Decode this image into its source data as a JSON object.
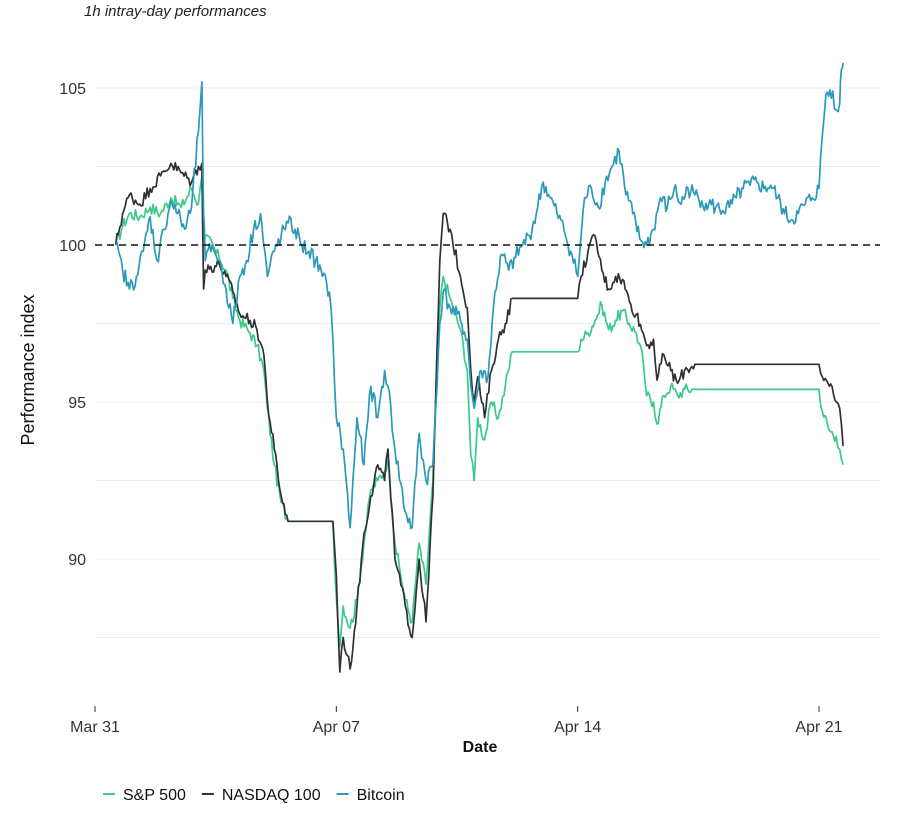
{
  "chart_data": {
    "type": "line",
    "subtitle": "1h intray-day performances",
    "xlabel": "Date",
    "ylabel": "Performance index",
    "x_ticks": [
      "Mar 31",
      "Apr 07",
      "Apr 14",
      "Apr 21"
    ],
    "x_range_days": [
      0,
      22.2
    ],
    "y_ticks": [
      90,
      95,
      100,
      105
    ],
    "ylim": [
      85.4,
      105.9
    ],
    "reference_line": 100,
    "grid": true,
    "legend_position": "bottom-left",
    "series": [
      {
        "name": "S&P 500",
        "color": "#3cc98a",
        "points": [
          [
            0.6,
            100
          ],
          [
            0.8,
            100.6
          ],
          [
            1.0,
            101.0
          ],
          [
            1.3,
            100.9
          ],
          [
            1.6,
            101.2
          ],
          [
            1.9,
            101.0
          ],
          [
            2.2,
            101.5
          ],
          [
            2.5,
            101.2
          ],
          [
            2.8,
            101.8
          ],
          [
            3.0,
            101.3
          ],
          [
            3.1,
            102.2
          ],
          [
            3.15,
            100.2
          ],
          [
            3.2,
            100.3
          ],
          [
            3.6,
            99.6
          ],
          [
            3.8,
            99.2
          ],
          [
            4.0,
            98.3
          ],
          [
            4.2,
            97.6
          ],
          [
            4.5,
            97.2
          ],
          [
            4.7,
            96.8
          ],
          [
            4.9,
            96.0
          ],
          [
            5.0,
            94.8
          ],
          [
            5.2,
            93.0
          ],
          [
            5.4,
            91.8
          ],
          [
            5.6,
            91.2
          ],
          [
            6.9,
            91.2
          ],
          [
            7.0,
            88.8
          ],
          [
            7.1,
            87.2
          ],
          [
            7.2,
            88.5
          ],
          [
            7.4,
            87.8
          ],
          [
            7.6,
            88.7
          ],
          [
            7.8,
            90.5
          ],
          [
            8.0,
            92.2
          ],
          [
            8.2,
            92.5
          ],
          [
            8.4,
            92.8
          ],
          [
            8.5,
            93.2
          ],
          [
            8.7,
            90.5
          ],
          [
            9.0,
            88.7
          ],
          [
            9.2,
            88.0
          ],
          [
            9.4,
            90.5
          ],
          [
            9.6,
            89.2
          ],
          [
            9.8,
            92.5
          ],
          [
            10.0,
            98.0
          ],
          [
            10.1,
            99.0
          ],
          [
            10.3,
            98.3
          ],
          [
            10.6,
            97.3
          ],
          [
            10.8,
            96.0
          ],
          [
            10.9,
            93.3
          ],
          [
            11.0,
            92.5
          ],
          [
            11.1,
            94.5
          ],
          [
            11.3,
            93.8
          ],
          [
            11.5,
            95.0
          ],
          [
            11.7,
            94.5
          ],
          [
            11.9,
            95.5
          ],
          [
            12.1,
            96.6
          ],
          [
            14.0,
            96.6
          ],
          [
            14.1,
            97.0
          ],
          [
            14.3,
            97.2
          ],
          [
            14.5,
            97.6
          ],
          [
            14.7,
            98.1
          ],
          [
            14.9,
            97.3
          ],
          [
            15.1,
            97.6
          ],
          [
            15.3,
            97.9
          ],
          [
            15.5,
            97.5
          ],
          [
            15.7,
            97.2
          ],
          [
            15.9,
            96.3
          ],
          [
            16.0,
            95.2
          ],
          [
            16.2,
            95.0
          ],
          [
            16.3,
            94.3
          ],
          [
            16.5,
            95.2
          ],
          [
            16.7,
            95.5
          ],
          [
            16.9,
            95.2
          ],
          [
            17.1,
            95.4
          ],
          [
            17.4,
            95.4
          ],
          [
            21.0,
            95.4
          ],
          [
            21.1,
            94.7
          ],
          [
            21.3,
            94.1
          ],
          [
            21.5,
            93.9
          ],
          [
            21.6,
            93.5
          ],
          [
            21.7,
            93.0
          ]
        ]
      },
      {
        "name": "NASDAQ 100",
        "color": "#2f3136",
        "points": [
          [
            0.6,
            100
          ],
          [
            0.8,
            101.0
          ],
          [
            1.0,
            101.6
          ],
          [
            1.3,
            101.3
          ],
          [
            1.6,
            101.8
          ],
          [
            1.9,
            102.2
          ],
          [
            2.2,
            102.6
          ],
          [
            2.5,
            102.3
          ],
          [
            2.8,
            102.0
          ],
          [
            3.0,
            102.5
          ],
          [
            3.1,
            102.6
          ],
          [
            3.15,
            98.6
          ],
          [
            3.2,
            99.2
          ],
          [
            3.6,
            99.4
          ],
          [
            3.8,
            99.0
          ],
          [
            4.0,
            98.5
          ],
          [
            4.2,
            97.8
          ],
          [
            4.5,
            97.6
          ],
          [
            4.7,
            97.3
          ],
          [
            4.9,
            96.5
          ],
          [
            5.0,
            95.0
          ],
          [
            5.2,
            93.5
          ],
          [
            5.4,
            92.0
          ],
          [
            5.6,
            91.2
          ],
          [
            6.9,
            91.2
          ],
          [
            7.0,
            89.5
          ],
          [
            7.1,
            86.4
          ],
          [
            7.2,
            87.5
          ],
          [
            7.4,
            86.5
          ],
          [
            7.6,
            88.5
          ],
          [
            7.8,
            90.8
          ],
          [
            8.0,
            92.0
          ],
          [
            8.2,
            93.0
          ],
          [
            8.4,
            92.5
          ],
          [
            8.5,
            93.5
          ],
          [
            8.7,
            90.0
          ],
          [
            9.0,
            88.5
          ],
          [
            9.2,
            87.5
          ],
          [
            9.4,
            90.0
          ],
          [
            9.6,
            88.0
          ],
          [
            9.8,
            92.0
          ],
          [
            10.0,
            99.5
          ],
          [
            10.1,
            101.0
          ],
          [
            10.3,
            100.5
          ],
          [
            10.6,
            99.0
          ],
          [
            10.8,
            98.0
          ],
          [
            10.9,
            96.0
          ],
          [
            11.0,
            95.0
          ],
          [
            11.1,
            95.8
          ],
          [
            11.3,
            94.5
          ],
          [
            11.5,
            96.0
          ],
          [
            11.7,
            97.0
          ],
          [
            11.9,
            97.5
          ],
          [
            12.1,
            98.3
          ],
          [
            14.0,
            98.3
          ],
          [
            14.1,
            99.0
          ],
          [
            14.3,
            99.8
          ],
          [
            14.5,
            100.3
          ],
          [
            14.7,
            99.2
          ],
          [
            14.9,
            98.6
          ],
          [
            15.1,
            99.0
          ],
          [
            15.3,
            98.9
          ],
          [
            15.5,
            98.2
          ],
          [
            15.7,
            97.8
          ],
          [
            15.9,
            97.2
          ],
          [
            16.0,
            96.8
          ],
          [
            16.2,
            97.0
          ],
          [
            16.3,
            95.7
          ],
          [
            16.5,
            96.5
          ],
          [
            16.7,
            96.0
          ],
          [
            16.9,
            95.6
          ],
          [
            17.1,
            96.0
          ],
          [
            17.4,
            96.2
          ],
          [
            21.0,
            96.2
          ],
          [
            21.1,
            95.8
          ],
          [
            21.3,
            95.5
          ],
          [
            21.5,
            95.0
          ],
          [
            21.6,
            94.8
          ],
          [
            21.7,
            93.6
          ]
        ]
      },
      {
        "name": "Bitcoin",
        "color": "#2a9ab8",
        "points": [
          [
            0.6,
            100
          ],
          [
            0.8,
            99.2
          ],
          [
            1.0,
            98.6
          ],
          [
            1.2,
            99.0
          ],
          [
            1.4,
            99.8
          ],
          [
            1.6,
            100.9
          ],
          [
            1.8,
            99.5
          ],
          [
            2.0,
            100.5
          ],
          [
            2.2,
            101.4
          ],
          [
            2.4,
            101.0
          ],
          [
            2.6,
            100.5
          ],
          [
            2.8,
            101.2
          ],
          [
            3.0,
            103.6
          ],
          [
            3.1,
            105.2
          ],
          [
            3.15,
            101.0
          ],
          [
            3.2,
            99.5
          ],
          [
            3.4,
            100.0
          ],
          [
            3.6,
            99.5
          ],
          [
            3.8,
            98.6
          ],
          [
            4.0,
            97.5
          ],
          [
            4.2,
            99.0
          ],
          [
            4.4,
            99.5
          ],
          [
            4.6,
            100.5
          ],
          [
            4.8,
            101.0
          ],
          [
            5.0,
            99.0
          ],
          [
            5.2,
            99.8
          ],
          [
            5.4,
            100.3
          ],
          [
            5.6,
            100.7
          ],
          [
            5.8,
            100.5
          ],
          [
            6.0,
            100.0
          ],
          [
            6.2,
            99.8
          ],
          [
            6.4,
            99.5
          ],
          [
            6.6,
            99.0
          ],
          [
            6.8,
            98.5
          ],
          [
            6.9,
            97.0
          ],
          [
            7.0,
            94.5
          ],
          [
            7.2,
            93.5
          ],
          [
            7.4,
            91.0
          ],
          [
            7.6,
            94.5
          ],
          [
            7.8,
            93.0
          ],
          [
            8.0,
            95.5
          ],
          [
            8.2,
            94.5
          ],
          [
            8.4,
            96.0
          ],
          [
            8.5,
            95.5
          ],
          [
            8.7,
            93.5
          ],
          [
            9.0,
            91.5
          ],
          [
            9.2,
            91.0
          ],
          [
            9.4,
            94.0
          ],
          [
            9.6,
            92.5
          ],
          [
            9.8,
            93.0
          ],
          [
            10.0,
            97.5
          ],
          [
            10.1,
            98.5
          ],
          [
            10.3,
            98.0
          ],
          [
            10.6,
            97.6
          ],
          [
            10.8,
            97.0
          ],
          [
            10.9,
            95.5
          ],
          [
            11.0,
            94.8
          ],
          [
            11.2,
            96.0
          ],
          [
            11.4,
            95.8
          ],
          [
            11.6,
            98.5
          ],
          [
            11.8,
            99.7
          ],
          [
            12.0,
            99.2
          ],
          [
            12.2,
            99.6
          ],
          [
            12.4,
            100.0
          ],
          [
            12.6,
            100.3
          ],
          [
            12.8,
            101.0
          ],
          [
            13.0,
            102.0
          ],
          [
            13.2,
            101.5
          ],
          [
            13.4,
            101.0
          ],
          [
            13.6,
            100.5
          ],
          [
            13.8,
            99.8
          ],
          [
            14.0,
            99.0
          ],
          [
            14.2,
            101.5
          ],
          [
            14.4,
            101.8
          ],
          [
            14.6,
            101.2
          ],
          [
            14.8,
            102.0
          ],
          [
            15.0,
            102.5
          ],
          [
            15.2,
            103.0
          ],
          [
            15.4,
            101.6
          ],
          [
            15.6,
            101.0
          ],
          [
            15.8,
            100.2
          ],
          [
            16.0,
            100.0
          ],
          [
            16.2,
            100.5
          ],
          [
            16.4,
            101.5
          ],
          [
            16.6,
            101.2
          ],
          [
            16.8,
            101.8
          ],
          [
            17.0,
            101.3
          ],
          [
            17.2,
            101.8
          ],
          [
            17.4,
            101.6
          ],
          [
            17.6,
            101.4
          ],
          [
            17.8,
            101.3
          ],
          [
            18.0,
            101.2
          ],
          [
            18.2,
            101.1
          ],
          [
            18.4,
            101.2
          ],
          [
            18.6,
            101.5
          ],
          [
            18.8,
            101.8
          ],
          [
            19.0,
            101.9
          ],
          [
            19.2,
            102.0
          ],
          [
            19.4,
            101.8
          ],
          [
            19.6,
            101.9
          ],
          [
            19.8,
            101.5
          ],
          [
            20.0,
            101.0
          ],
          [
            20.2,
            100.8
          ],
          [
            20.4,
            101.0
          ],
          [
            20.6,
            101.3
          ],
          [
            20.8,
            101.5
          ],
          [
            21.0,
            101.8
          ],
          [
            21.1,
            103.5
          ],
          [
            21.2,
            104.8
          ],
          [
            21.4,
            104.9
          ],
          [
            21.5,
            104.3
          ],
          [
            21.6,
            104.5
          ],
          [
            21.65,
            105.6
          ],
          [
            21.7,
            105.8
          ]
        ]
      }
    ]
  }
}
